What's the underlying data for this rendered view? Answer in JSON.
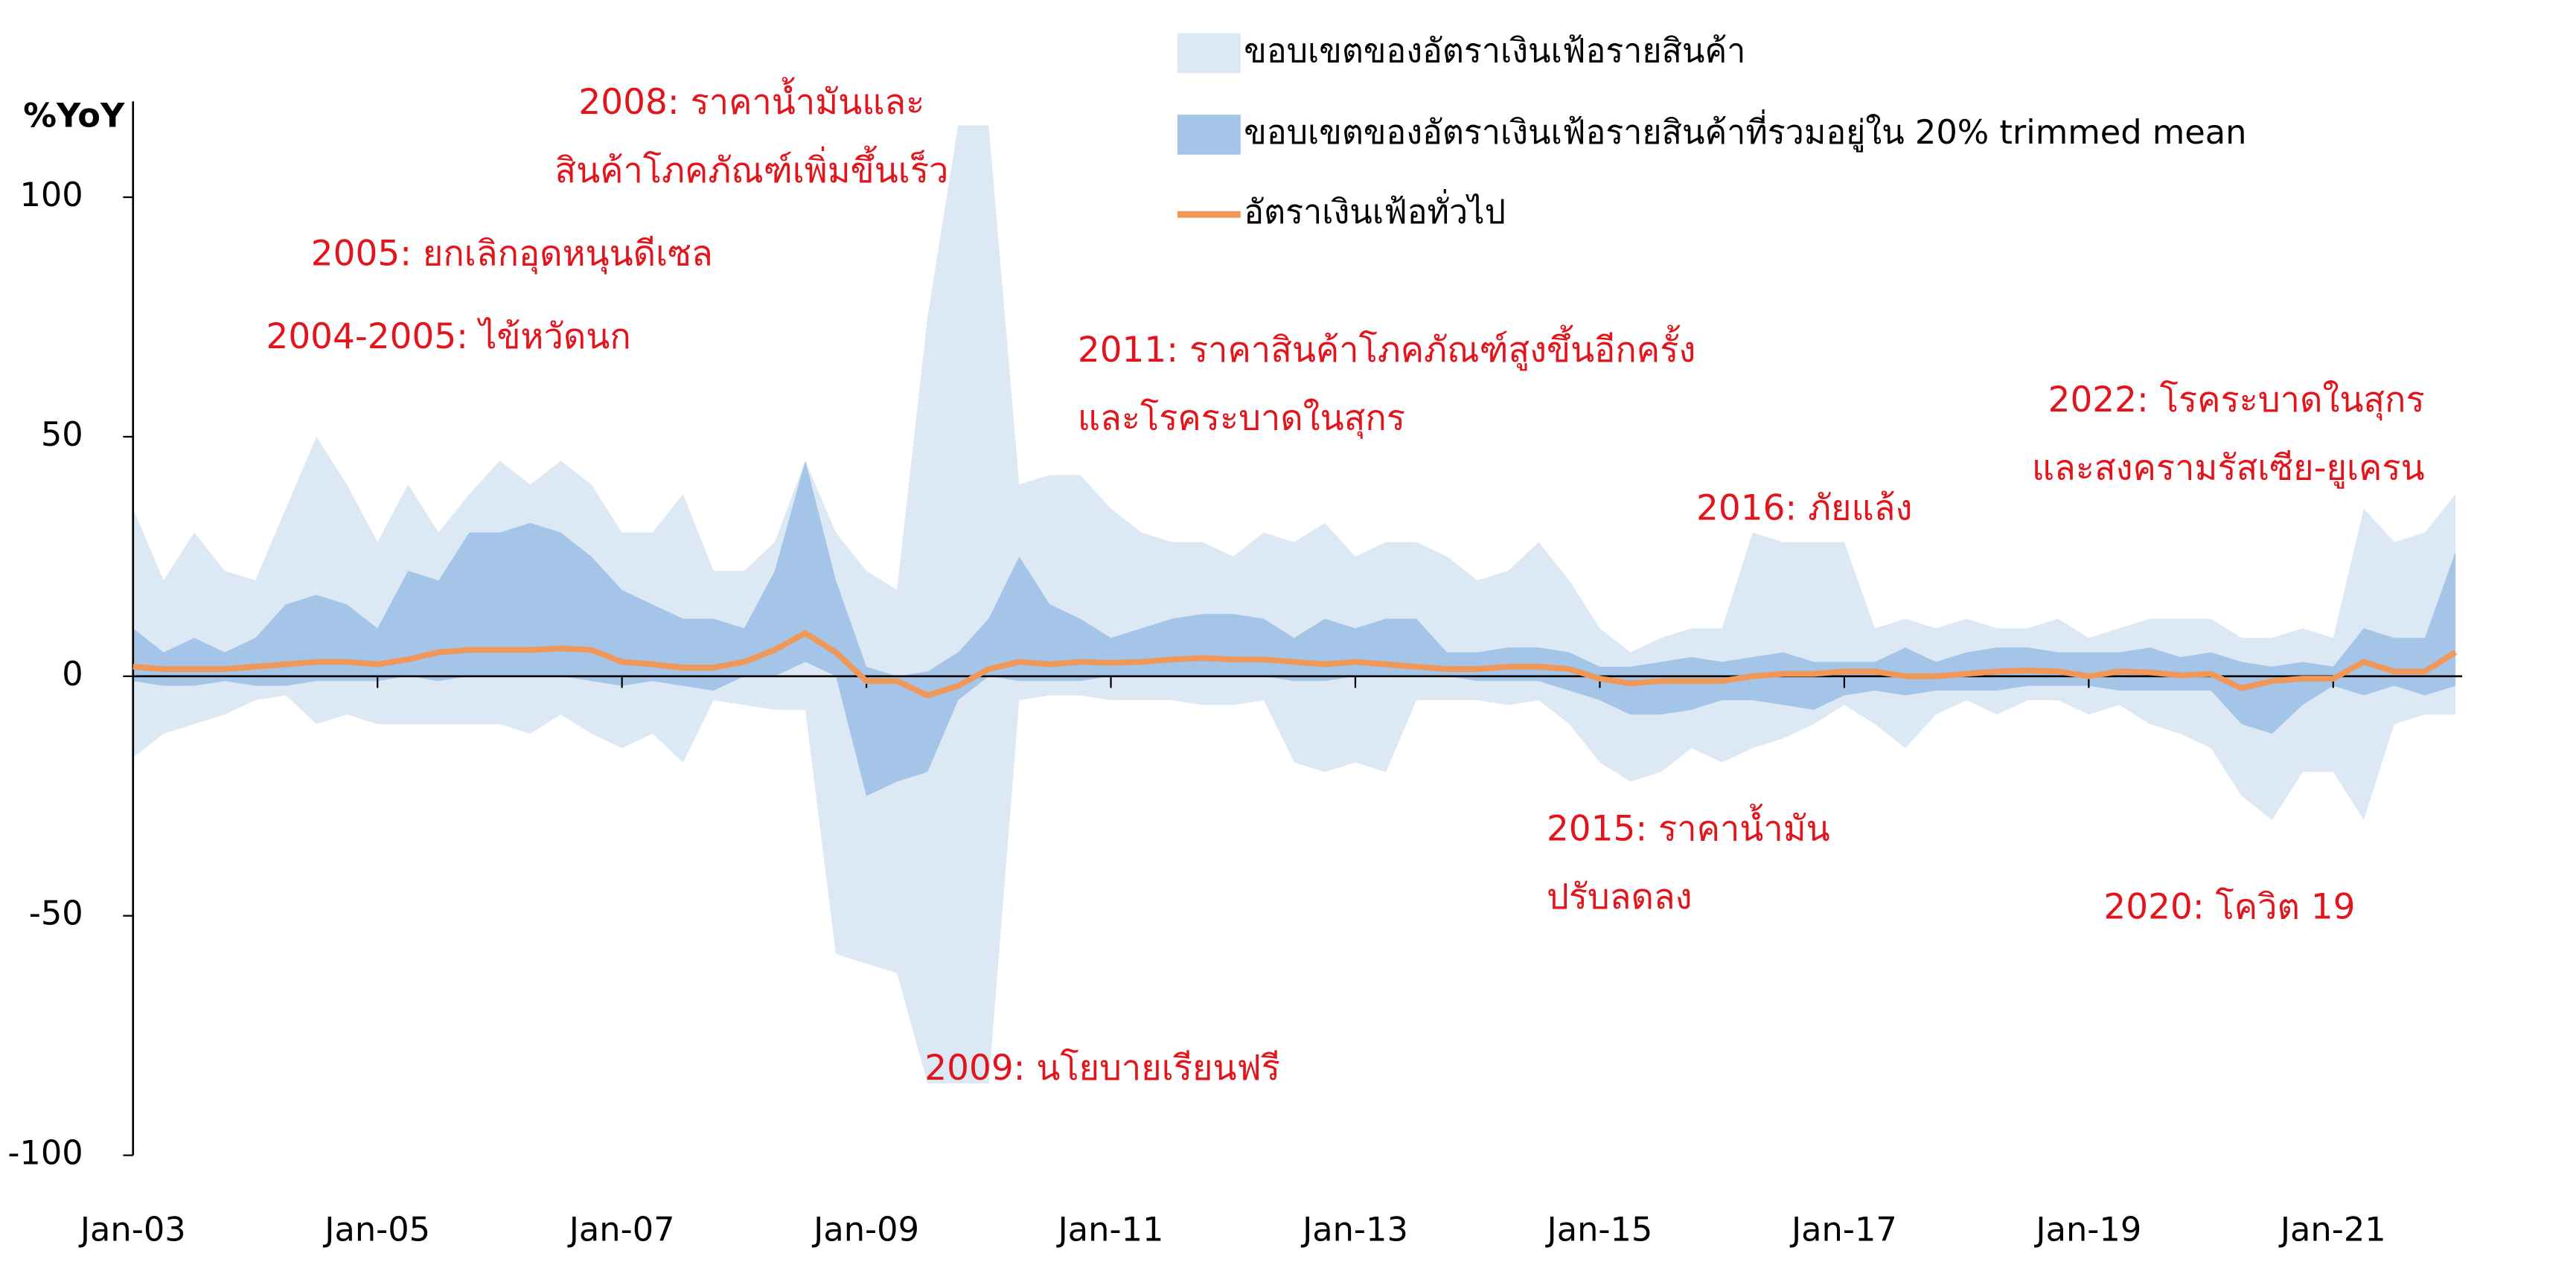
{
  "chart_data": {
    "type": "band",
    "y_label": "%YoY",
    "x": [
      "Jan-03",
      "Apr-03",
      "Jul-03",
      "Oct-03",
      "Jan-04",
      "Apr-04",
      "Jul-04",
      "Oct-04",
      "Jan-05",
      "Apr-05",
      "Jul-05",
      "Oct-05",
      "Jan-06",
      "Apr-06",
      "Jul-06",
      "Oct-06",
      "Jan-07",
      "Apr-07",
      "Jul-07",
      "Oct-07",
      "Jan-08",
      "Apr-08",
      "Jul-08",
      "Oct-08",
      "Jan-09",
      "Apr-09",
      "Jul-09",
      "Oct-09",
      "Jan-10",
      "Apr-10",
      "Jul-10",
      "Oct-10",
      "Jan-11",
      "Apr-11",
      "Jul-11",
      "Oct-11",
      "Jan-12",
      "Apr-12",
      "Jul-12",
      "Oct-12",
      "Jan-13",
      "Apr-13",
      "Jul-13",
      "Oct-13",
      "Jan-14",
      "Apr-14",
      "Jul-14",
      "Oct-14",
      "Jan-15",
      "Apr-15",
      "Jul-15",
      "Oct-15",
      "Jan-16",
      "Apr-16",
      "Jul-16",
      "Oct-16",
      "Jan-17",
      "Apr-17",
      "Jul-17",
      "Oct-17",
      "Jan-18",
      "Apr-18",
      "Jul-18",
      "Oct-18",
      "Jan-19",
      "Apr-19",
      "Jul-19",
      "Oct-19",
      "Jan-20",
      "Apr-20",
      "Jul-20",
      "Oct-20",
      "Jan-21",
      "Apr-21",
      "Jul-21",
      "Oct-21",
      "Jan-22"
    ],
    "xticks": [
      "Jan-03",
      "Jan-05",
      "Jan-07",
      "Jan-09",
      "Jan-11",
      "Jan-13",
      "Jan-15",
      "Jan-17",
      "Jan-19",
      "Jan-21"
    ],
    "ylim": [
      -100,
      120
    ],
    "yticks": [
      -100,
      -50,
      0,
      50,
      100
    ],
    "series": [
      {
        "name": "ขอบเขตของอัตราเงินเฟ้อรายสินค้า",
        "color": "#dde8f5",
        "upper": [
          35,
          20,
          30,
          22,
          20,
          35,
          50,
          40,
          28,
          40,
          30,
          38,
          45,
          40,
          45,
          40,
          30,
          30,
          38,
          22,
          22,
          28,
          45,
          30,
          22,
          18,
          75,
          115,
          115,
          40,
          42,
          42,
          35,
          30,
          28,
          28,
          25,
          30,
          28,
          32,
          25,
          28,
          28,
          25,
          20,
          22,
          28,
          20,
          10,
          5,
          8,
          10,
          10,
          30,
          28,
          28,
          28,
          10,
          12,
          10,
          12,
          10,
          10,
          12,
          8,
          10,
          12,
          12,
          12,
          8,
          8,
          10,
          8,
          35,
          28,
          30,
          38
        ],
        "lower": [
          -17,
          -12,
          -10,
          -8,
          -5,
          -4,
          -10,
          -8,
          -10,
          -10,
          -10,
          -10,
          -10,
          -12,
          -8,
          -12,
          -15,
          -12,
          -18,
          -5,
          -6,
          -7,
          -7,
          -58,
          -60,
          -62,
          -85,
          -85,
          -85,
          -5,
          -4,
          -4,
          -5,
          -5,
          -5,
          -6,
          -6,
          -5,
          -18,
          -20,
          -18,
          -20,
          -5,
          -5,
          -5,
          -6,
          -5,
          -10,
          -18,
          -22,
          -20,
          -15,
          -18,
          -15,
          -13,
          -10,
          -6,
          -10,
          -15,
          -8,
          -5,
          -8,
          -5,
          -5,
          -8,
          -6,
          -10,
          -12,
          -15,
          -25,
          -30,
          -20,
          -20,
          -30,
          -10,
          -8,
          -8
        ]
      },
      {
        "name": "ขอบเขตของอัตราเงินเฟ้อรายสินค้าที่รวมอยู่ใน 20% trimmed mean",
        "color": "#a4c5e7",
        "upper": [
          10,
          5,
          8,
          5,
          8,
          15,
          17,
          15,
          10,
          22,
          20,
          30,
          30,
          32,
          30,
          25,
          18,
          15,
          12,
          12,
          10,
          22,
          45,
          20,
          2,
          0,
          1,
          5,
          12,
          25,
          15,
          12,
          8,
          10,
          12,
          13,
          13,
          12,
          8,
          12,
          10,
          12,
          12,
          5,
          5,
          6,
          6,
          5,
          2,
          2,
          3,
          4,
          3,
          4,
          5,
          3,
          3,
          3,
          6,
          3,
          5,
          6,
          6,
          5,
          5,
          5,
          6,
          4,
          5,
          3,
          2,
          3,
          2,
          10,
          8,
          8,
          26
        ],
        "lower": [
          -1,
          -2,
          -2,
          -1,
          -2,
          -2,
          -1,
          -1,
          -1,
          0,
          -1,
          0,
          0,
          0,
          0,
          -1,
          -2,
          -1,
          -2,
          -3,
          0,
          0,
          3,
          0,
          -25,
          -22,
          -20,
          -5,
          0,
          -1,
          -1,
          -1,
          0,
          0,
          0,
          0,
          0,
          0,
          -1,
          -1,
          0,
          0,
          0,
          0,
          -1,
          -1,
          -1,
          -3,
          -5,
          -8,
          -8,
          -7,
          -5,
          -5,
          -6,
          -7,
          -4,
          -3,
          -4,
          -3,
          -3,
          -3,
          -2,
          -2,
          -2,
          -3,
          -3,
          -3,
          -3,
          -10,
          -12,
          -6,
          -2,
          -4,
          -2,
          -4,
          -2
        ]
      },
      {
        "name": "อัตราเงินเฟ้อทั่วไป",
        "color": "#f0985a",
        "type": "line",
        "values": [
          2,
          1.5,
          1.5,
          1.5,
          2,
          2.5,
          3,
          3,
          2.5,
          3.5,
          5,
          5.5,
          5.5,
          5.5,
          5.8,
          5.5,
          3,
          2.5,
          1.8,
          1.8,
          3,
          5.5,
          9,
          5,
          -1,
          -1,
          -4,
          -2,
          1.5,
          3,
          2.5,
          3,
          2.8,
          3,
          3.5,
          3.8,
          3.5,
          3.5,
          3,
          2.5,
          3,
          2.5,
          2,
          1.5,
          1.5,
          2,
          2,
          1.5,
          -0.5,
          -1.5,
          -1,
          -1,
          -1,
          0,
          0.5,
          0.5,
          1,
          1,
          0,
          0,
          0.5,
          1,
          1.2,
          1,
          0,
          1,
          0.8,
          0.2,
          0.5,
          -2.5,
          -1,
          -0.5,
          -0.5,
          3,
          1,
          1,
          5
        ]
      }
    ],
    "annotations": [
      [
        "2008: ราคาน้ำมันและ",
        "สินค้าโภคภัณฑ์เพิ่มขึ้นเร็ว"
      ],
      [
        "2005: ยกเลิกอุดหนุนดีเซล"
      ],
      [
        "2004-2005: ไข้หวัดนก"
      ],
      [
        "2011: ราคาสินค้าโภคภัณฑ์สูงขึ้นอีกครั้ง",
        "และโรคระบาดในสุกร"
      ],
      [
        "2022: โรคระบาดในสุกร",
        "และสงครามรัสเซีย-ยูเครน"
      ],
      [
        "2016: ภัยแล้ง"
      ],
      [
        "2015: ราคาน้ำมัน",
        "ปรับลดลง"
      ],
      [
        "2020: โควิต 19"
      ],
      [
        "2009: นโยบายเรียนฟรี"
      ]
    ]
  }
}
